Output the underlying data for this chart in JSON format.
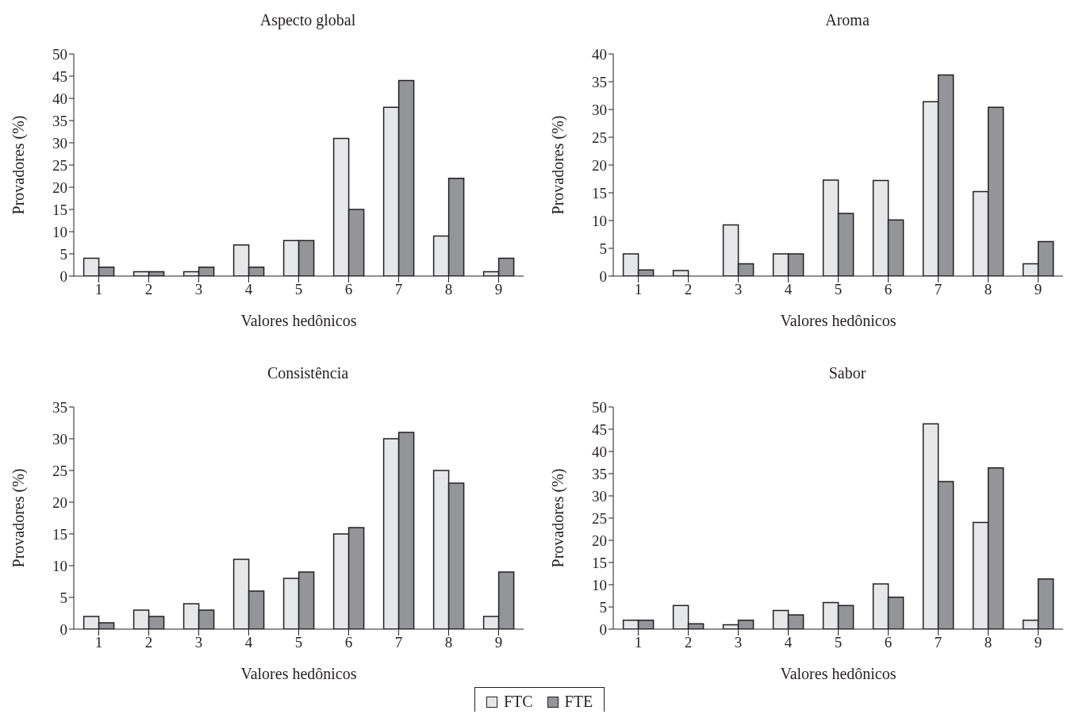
{
  "chart_data": [
    {
      "type": "bar",
      "title": "Aspecto global",
      "xlabel": "Valores hedônicos",
      "ylabel": "Provadores (%)",
      "categories": [
        "1",
        "2",
        "3",
        "4",
        "5",
        "6",
        "7",
        "8",
        "9"
      ],
      "ylim": [
        0,
        50
      ],
      "yticks": [
        0,
        5,
        10,
        15,
        20,
        25,
        30,
        35,
        40,
        45,
        50
      ],
      "legend": "bottom",
      "series": [
        {
          "name": "FTC",
          "color": "#e6e7e8",
          "values": [
            4,
            1,
            1,
            7,
            8,
            31,
            38,
            9,
            1
          ]
        },
        {
          "name": "FTE",
          "color": "#939598",
          "values": [
            2,
            1,
            2,
            2,
            8,
            15,
            44,
            22,
            4
          ]
        }
      ]
    },
    {
      "type": "bar",
      "title": "Aroma",
      "xlabel": "Valores hedônicos",
      "ylabel": "Provadores (%)",
      "categories": [
        "1",
        "2",
        "3",
        "4",
        "5",
        "6",
        "7",
        "8",
        "9"
      ],
      "ylim": [
        0,
        40
      ],
      "yticks": [
        0,
        5,
        10,
        15,
        20,
        25,
        30,
        35,
        40
      ],
      "series": [
        {
          "color": "#e6e7e8",
          "values": [
            4,
            1,
            9.2,
            4,
            17.3,
            17.2,
            31.4,
            15.2,
            2.2
          ]
        },
        {
          "color": "#939598",
          "values": [
            1.1,
            0,
            2.2,
            4,
            11.3,
            10.1,
            36.2,
            30.4,
            6.2
          ]
        }
      ]
    },
    {
      "type": "bar",
      "title": "Consistência",
      "xlabel": "Valores hedônicos",
      "ylabel": "Provadores (%)",
      "categories": [
        "1",
        "2",
        "3",
        "4",
        "5",
        "6",
        "7",
        "8",
        "9"
      ],
      "ylim": [
        0,
        35
      ],
      "yticks": [
        0,
        5,
        10,
        15,
        20,
        25,
        30,
        35
      ],
      "series": [
        {
          "color": "#e6e7e8",
          "values": [
            2,
            3,
            4,
            11,
            8,
            15,
            30,
            25,
            2
          ]
        },
        {
          "color": "#939598",
          "values": [
            1,
            2,
            3,
            6,
            9,
            16,
            31,
            23,
            9
          ]
        }
      ]
    },
    {
      "type": "bar",
      "title": "Sabor",
      "xlabel": "Valores hedônicos",
      "ylabel": "Provadores (%)",
      "categories": [
        "1",
        "2",
        "3",
        "4",
        "5",
        "6",
        "7",
        "8",
        "9"
      ],
      "ylim": [
        0,
        50
      ],
      "yticks": [
        0,
        5,
        10,
        15,
        20,
        25,
        30,
        35,
        40,
        45,
        50
      ],
      "series": [
        {
          "color": "#e6e7e8",
          "values": [
            2,
            5.3,
            1,
            4.2,
            6,
            10.2,
            46.2,
            24,
            2
          ]
        },
        {
          "color": "#939598",
          "values": [
            2,
            1.2,
            2,
            3.2,
            5.3,
            7.2,
            33.2,
            36.3,
            11.3
          ]
        }
      ]
    }
  ]
}
